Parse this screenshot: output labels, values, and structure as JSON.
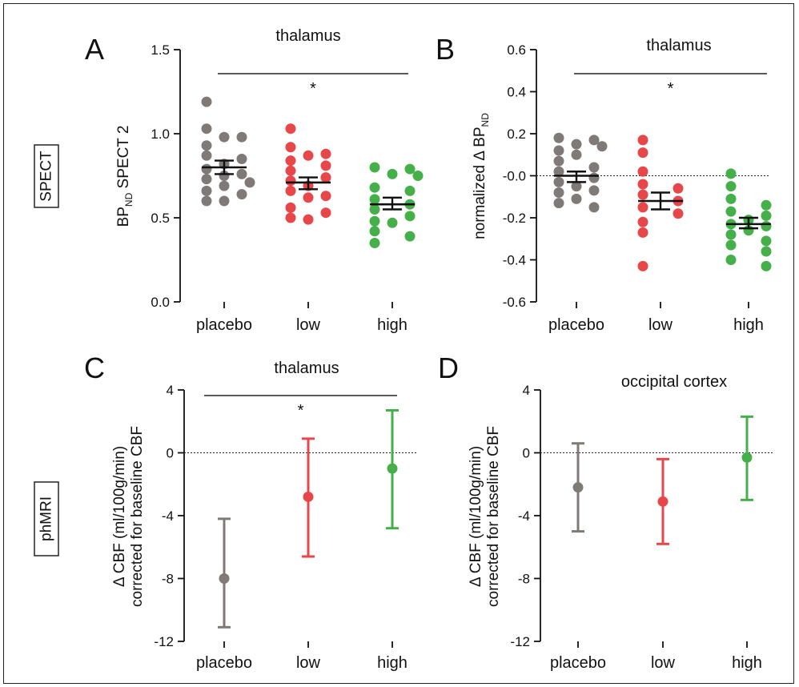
{
  "row_labels": [
    "SPECT",
    "phMRI"
  ],
  "colors": {
    "placebo": "#7f7a77",
    "low": "#e8474a",
    "high": "#45b04a"
  },
  "chart_data": [
    {
      "panel": "A",
      "type": "scatter",
      "title": "thalamus",
      "ylabel_main": "BP",
      "ylabel_sub": "ND",
      "ylabel_rest": " SPECT 2",
      "ylim": [
        0,
        1.5
      ],
      "yticks": [
        "0.0",
        "0.5",
        "1.0",
        "1.5"
      ],
      "categories": [
        "placebo",
        "low",
        "high"
      ],
      "significance": "*",
      "zero_line": false,
      "series": [
        {
          "category": "placebo",
          "mean": 0.8,
          "sem_low": 0.76,
          "sem_high": 0.84,
          "values": [
            1.19,
            1.03,
            0.98,
            0.98,
            0.93,
            0.87,
            0.85,
            0.82,
            0.79,
            0.76,
            0.75,
            0.73,
            0.71,
            0.69,
            0.66,
            0.64,
            0.6,
            0.6
          ]
        },
        {
          "category": "low",
          "mean": 0.71,
          "sem_low": 0.67,
          "sem_high": 0.74,
          "values": [
            1.03,
            0.92,
            0.88,
            0.87,
            0.84,
            0.81,
            0.78,
            0.74,
            0.72,
            0.69,
            0.66,
            0.63,
            0.62,
            0.56,
            0.53,
            0.5,
            0.49
          ]
        },
        {
          "category": "high",
          "mean": 0.58,
          "sem_low": 0.55,
          "sem_high": 0.62,
          "values": [
            0.8,
            0.79,
            0.76,
            0.75,
            0.68,
            0.66,
            0.61,
            0.58,
            0.55,
            0.51,
            0.48,
            0.47,
            0.42,
            0.39,
            0.35
          ]
        }
      ]
    },
    {
      "panel": "B",
      "type": "scatter",
      "title": "thalamus",
      "ylabel_main": "normalized  Δ BP",
      "ylabel_sub": "ND",
      "ylabel_rest": "",
      "ylim": [
        -0.6,
        0.6
      ],
      "yticks": [
        "-0.6",
        "-0.4",
        "-0.2",
        "-0.0",
        "0.2",
        "0.4",
        "0.6"
      ],
      "categories": [
        "placebo",
        "low",
        "high"
      ],
      "significance": "*",
      "zero_line": true,
      "series": [
        {
          "category": "placebo",
          "mean": 0.0,
          "sem_low": -0.03,
          "sem_high": 0.02,
          "values": [
            0.18,
            0.17,
            0.15,
            0.14,
            0.12,
            0.1,
            0.07,
            0.04,
            0.02,
            -0.01,
            -0.03,
            -0.05,
            -0.07,
            -0.08,
            -0.11,
            -0.13,
            -0.15
          ]
        },
        {
          "category": "low",
          "mean": -0.12,
          "sem_low": -0.16,
          "sem_high": -0.08,
          "values": [
            0.17,
            0.11,
            0.02,
            -0.04,
            -0.06,
            -0.09,
            -0.12,
            -0.15,
            -0.18,
            -0.22,
            -0.27,
            -0.43
          ]
        },
        {
          "category": "high",
          "mean": -0.23,
          "sem_low": -0.25,
          "sem_high": -0.2,
          "values": [
            0.01,
            -0.05,
            -0.11,
            -0.14,
            -0.17,
            -0.19,
            -0.21,
            -0.23,
            -0.24,
            -0.26,
            -0.28,
            -0.31,
            -0.33,
            -0.36,
            -0.4,
            -0.43
          ]
        }
      ]
    },
    {
      "panel": "C",
      "type": "errorbar",
      "title": "thalamus",
      "ylabel_line1": "Δ CBF (ml/100g/min)",
      "ylabel_line2": "corrected for baseline CBF",
      "ylim": [
        -12,
        4
      ],
      "yticks": [
        "-12",
        "-8",
        "-4",
        "0",
        "4"
      ],
      "categories": [
        "placebo",
        "low",
        "high"
      ],
      "significance": "*",
      "zero_line": true,
      "series": [
        {
          "category": "placebo",
          "mean": -8.0,
          "low": -11.1,
          "high": -4.2
        },
        {
          "category": "low",
          "mean": -2.8,
          "low": -6.6,
          "high": 0.9
        },
        {
          "category": "high",
          "mean": -1.0,
          "low": -4.8,
          "high": 2.7
        }
      ]
    },
    {
      "panel": "D",
      "type": "errorbar",
      "title": "occipital cortex",
      "ylabel_line1": "Δ CBF (ml/100g/min)",
      "ylabel_line2": "corrected for baseline CBF",
      "ylim": [
        -12,
        4
      ],
      "yticks": [
        "-12",
        "-8",
        "-4",
        "0",
        "4"
      ],
      "categories": [
        "placebo",
        "low",
        "high"
      ],
      "significance": "",
      "zero_line": true,
      "series": [
        {
          "category": "placebo",
          "mean": -2.2,
          "low": -5.0,
          "high": 0.6
        },
        {
          "category": "low",
          "mean": -3.1,
          "low": -5.8,
          "high": -0.4
        },
        {
          "category": "high",
          "mean": -0.3,
          "low": -3.0,
          "high": 2.3
        }
      ]
    }
  ]
}
